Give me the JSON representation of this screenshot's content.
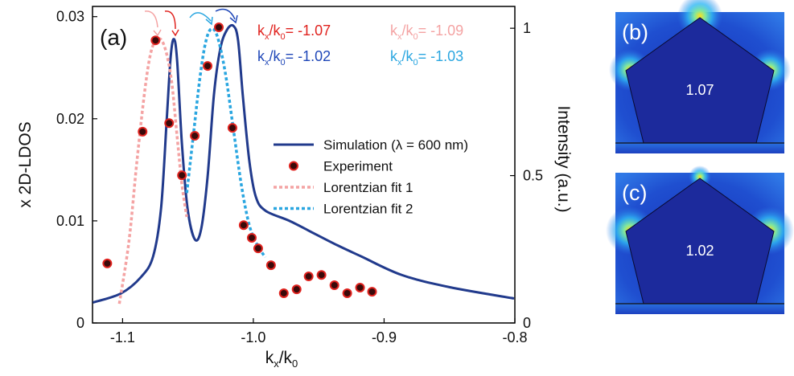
{
  "chart_data": {
    "type": "line",
    "panel_label": "(a)",
    "xlabel_parts": [
      "k",
      "x",
      "/k",
      "0"
    ],
    "ylabel": "x 2D-LDOS",
    "y2label": "Intensity (a.u.)",
    "xlim": [
      -1.123,
      -0.8
    ],
    "xticks": [
      -1.1,
      {
        "value": -1.0,
        "label": "-1.0"
      },
      -0.9,
      -0.8
    ],
    "ylim": [
      0,
      0.031
    ],
    "yticks": [
      0,
      0.01,
      0.02,
      0.03
    ],
    "y2lim": [
      0,
      1.074
    ],
    "y2ticks": [
      0,
      0.5,
      1
    ],
    "series": [
      {
        "name": "Simulation (λ = 600 nm)",
        "type": "line",
        "color": "#213a8c",
        "dashed": false,
        "x": [
          -1.1227,
          -1.1012,
          -1.0859,
          -1.0767,
          -1.0706,
          -1.0663,
          -1.0632,
          -1.0607,
          -1.0583,
          -1.0546,
          -1.0503,
          -1.0448,
          -1.0399,
          -1.035,
          -1.0301,
          -1.0252,
          -1.0202,
          -1.0153,
          -1.0117,
          -1.008,
          -1.0031,
          -0.9982,
          -0.9908,
          -0.9724,
          -0.954,
          -0.9356,
          -0.9172,
          -0.8865,
          -0.8497,
          -0.8006
        ],
        "values": [
          0.002,
          0.0029,
          0.0045,
          0.0065,
          0.0112,
          0.0198,
          0.0261,
          0.0278,
          0.0257,
          0.0175,
          0.0112,
          0.0082,
          0.0092,
          0.0143,
          0.0224,
          0.0269,
          0.0287,
          0.0291,
          0.0277,
          0.0222,
          0.0159,
          0.0124,
          0.011,
          0.01,
          0.0088,
          0.0076,
          0.0065,
          0.0047,
          0.0035,
          0.0024
        ]
      },
      {
        "name": "Experiment",
        "type": "scatter",
        "color": "#e0231f",
        "axis": "y2",
        "x": [
          -1.1117,
          -1.0847,
          -1.0748,
          -1.0644,
          -1.0546,
          -1.0448,
          -1.035,
          -1.0264,
          -1.016,
          -1.0074,
          -1.0012,
          -0.9963,
          -0.9865,
          -0.9767,
          -0.9669,
          -0.9577,
          -0.9479,
          -0.938,
          -0.9282,
          -0.9184,
          -0.9092
        ],
        "values": [
          0.202,
          0.649,
          0.959,
          0.678,
          0.501,
          0.635,
          0.872,
          1.003,
          0.662,
          0.332,
          0.289,
          0.253,
          0.196,
          0.101,
          0.114,
          0.158,
          0.163,
          0.128,
          0.101,
          0.12,
          0.106
        ]
      },
      {
        "name": "Lorentzian fit 1",
        "type": "line",
        "color": "#f4a3a3",
        "dashed": true,
        "axis": "y2",
        "x": [
          -1.1025,
          -1.0951,
          -1.089,
          -1.0828,
          -1.0779,
          -1.0724,
          -1.0675,
          -1.0626,
          -1.0583,
          -1.0546,
          -1.0509
        ],
        "values": [
          0.065,
          0.278,
          0.55,
          0.796,
          0.926,
          0.965,
          0.932,
          0.823,
          0.632,
          0.469,
          0.36
        ]
      },
      {
        "name": "Lorentzian fit 2",
        "type": "line",
        "color": "#2aa6e0",
        "dashed": true,
        "axis": "y2",
        "x": [
          -1.0509,
          -1.046,
          -1.0411,
          -1.0368,
          -1.0325,
          -1.0276,
          -1.0215,
          -1.0153,
          -1.0092,
          -1.0031,
          -0.9969,
          -0.9908
        ],
        "values": [
          0.441,
          0.632,
          0.823,
          0.946,
          0.997,
          0.973,
          0.85,
          0.659,
          0.469,
          0.332,
          0.264,
          0.223
        ]
      }
    ],
    "annotations": [
      {
        "parts": [
          "k",
          "x",
          "/k",
          "0",
          "= -1.07"
        ],
        "color": "#e0231f"
      },
      {
        "parts": [
          "k",
          "x",
          "/k",
          "0",
          "= -1.09"
        ],
        "color": "#f4a3a3"
      },
      {
        "parts": [
          "k",
          "x",
          "/k",
          "0",
          "= -1.02"
        ],
        "color": "#1f47b8"
      },
      {
        "parts": [
          "k",
          "x",
          "/k",
          "0",
          "= -1.03"
        ],
        "color": "#2aa6e0"
      }
    ]
  },
  "insets": [
    {
      "label": "(b)",
      "value_text": "1.07"
    },
    {
      "label": "(c)",
      "value_text": "1.02"
    }
  ]
}
